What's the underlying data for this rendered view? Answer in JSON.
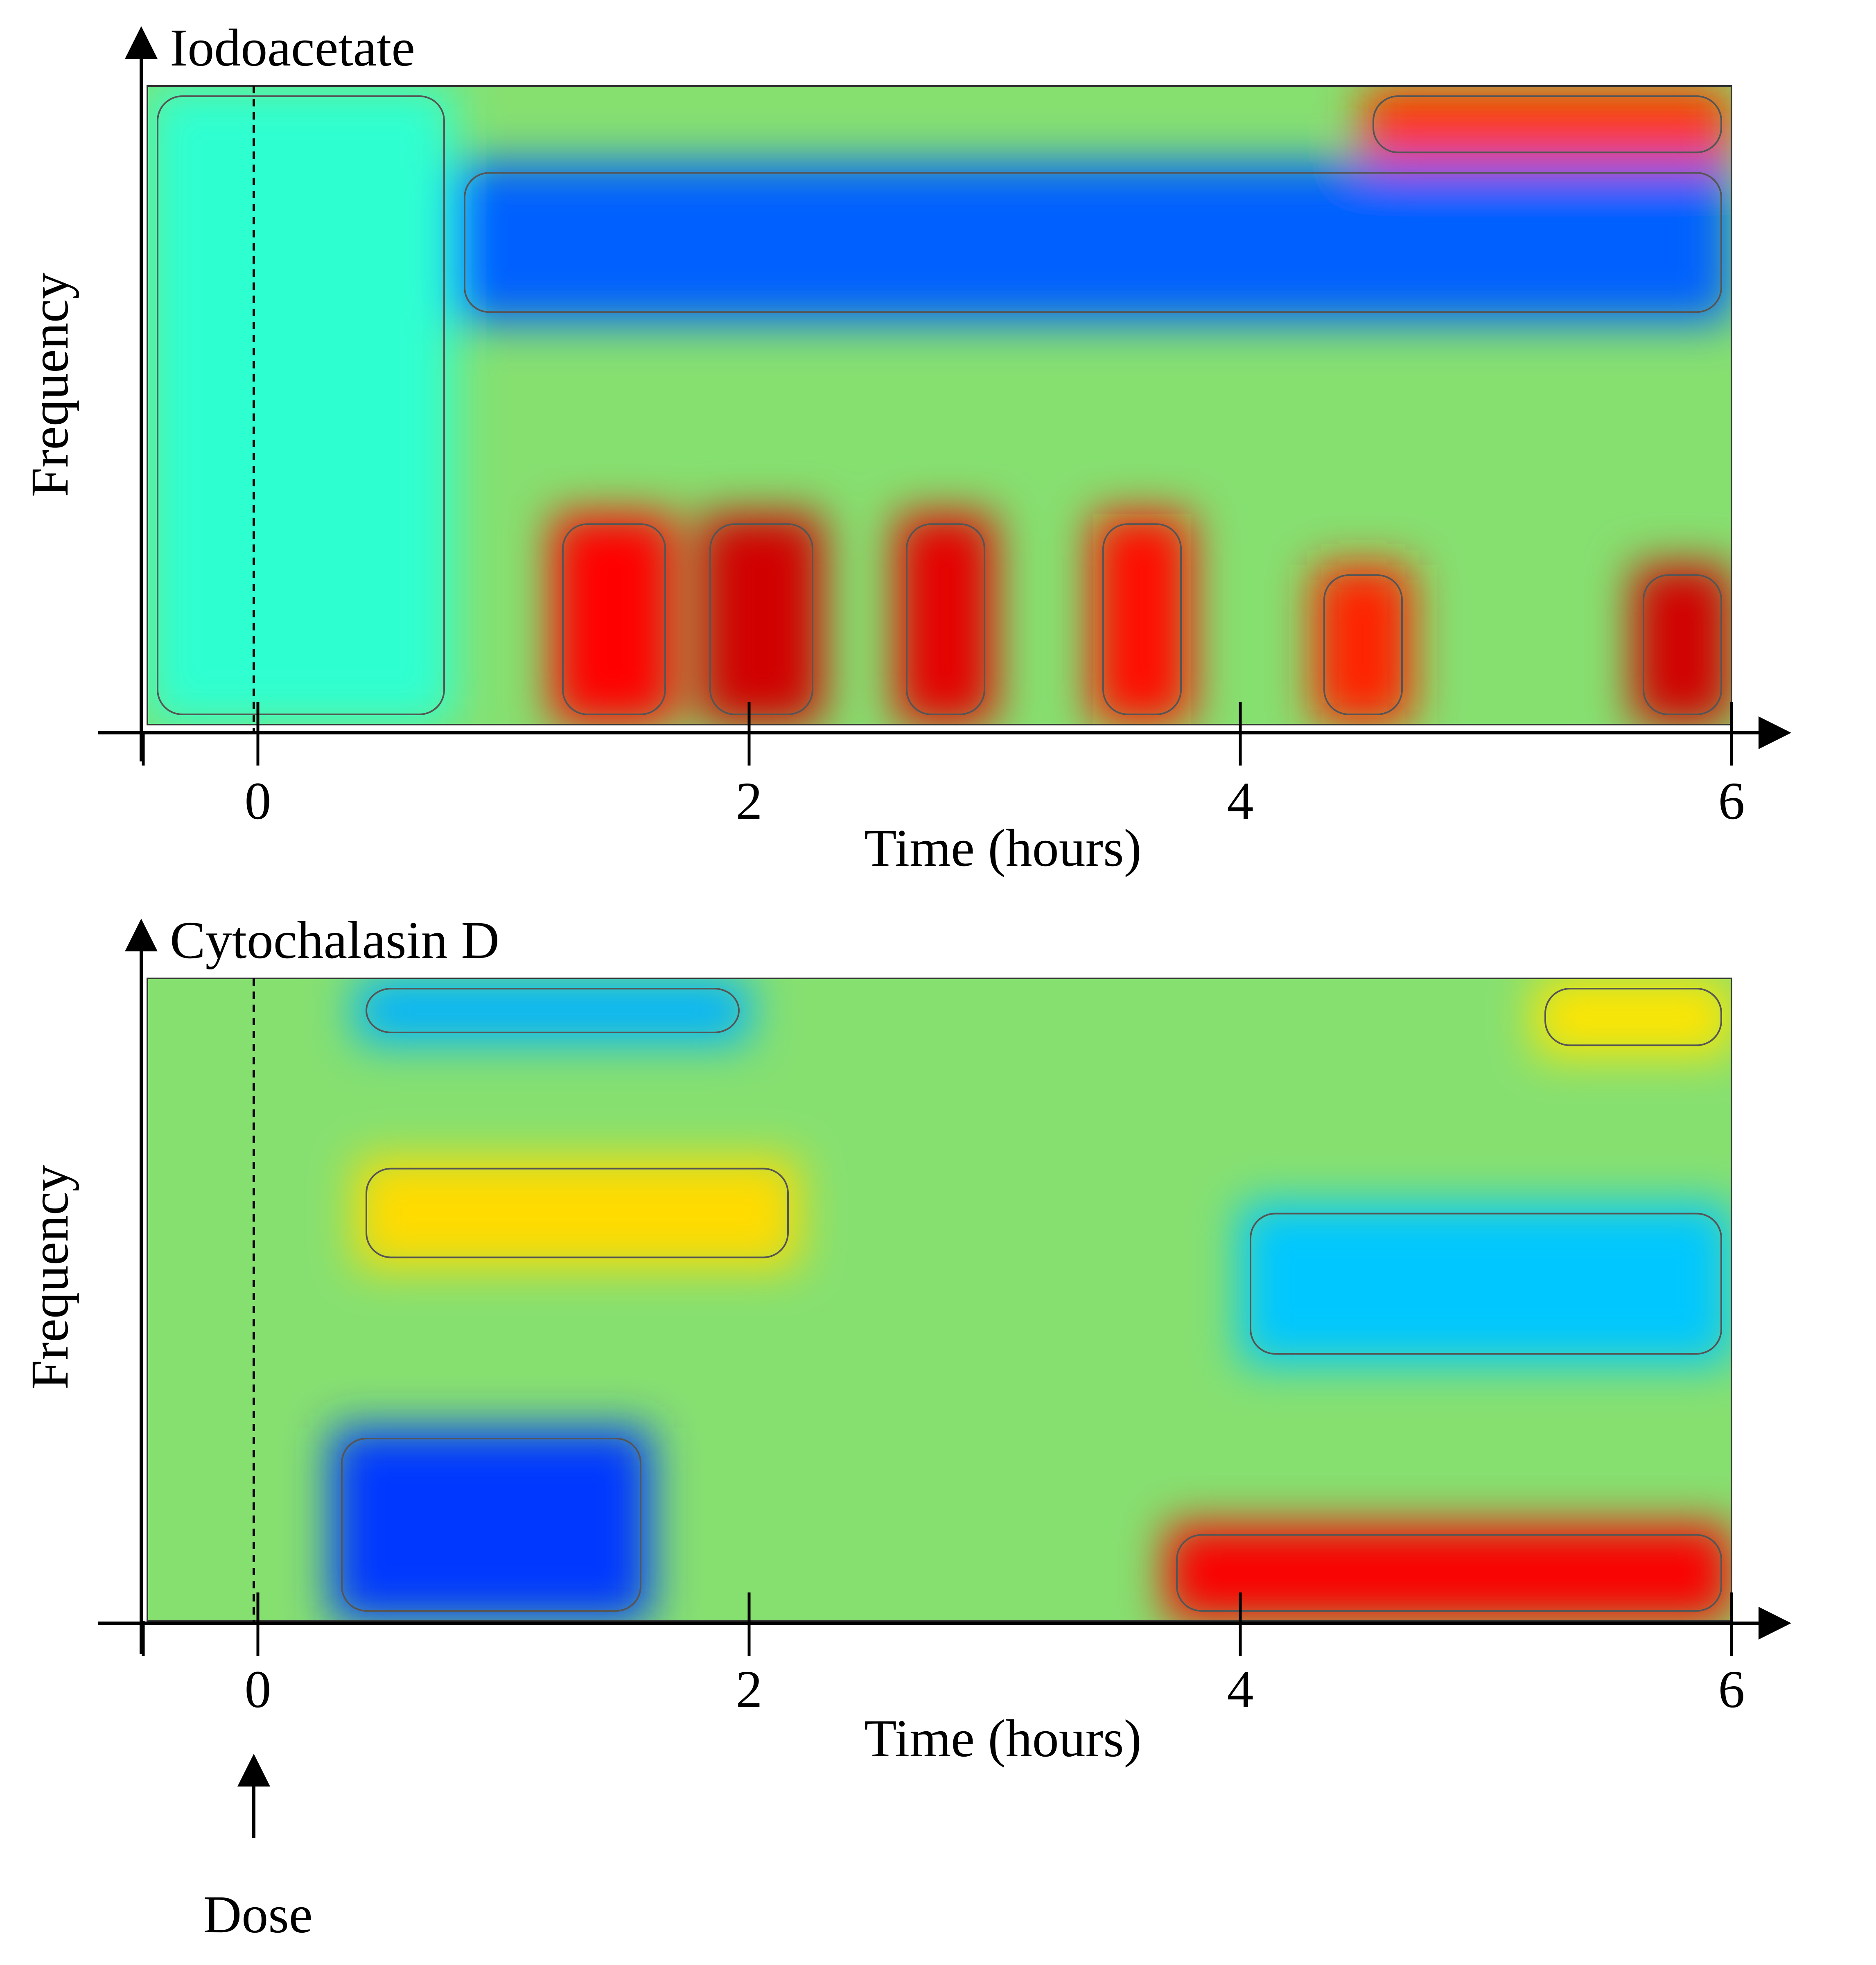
{
  "chart_data": [
    {
      "type": "heatmap",
      "title": "Iodoacetate",
      "xlabel": "Time (hours)",
      "ylabel": "Frequency",
      "xlim": [
        -0.45,
        6.0
      ],
      "xticks": [
        0,
        2,
        4,
        6
      ],
      "xtick_labels": [
        "0",
        "2",
        "4",
        "6"
      ],
      "dose_marker_x": 0,
      "colormap": "jet",
      "contours": true,
      "regions": [
        {
          "t0": -0.45,
          "t1": 0.8,
          "f0": 0.0,
          "f1": 1.0,
          "value": 0.42
        },
        {
          "t0": 0.8,
          "t1": 6.0,
          "f0": 0.63,
          "f1": 0.88,
          "value": 0.22
        },
        {
          "t0": 1.2,
          "t1": 1.7,
          "f0": 0.0,
          "f1": 0.33,
          "value": 0.87
        },
        {
          "t0": 1.8,
          "t1": 2.3,
          "f0": 0.0,
          "f1": 0.33,
          "value": 0.92
        },
        {
          "t0": 2.6,
          "t1": 3.0,
          "f0": 0.0,
          "f1": 0.33,
          "value": 0.9
        },
        {
          "t0": 3.4,
          "t1": 3.8,
          "f0": 0.0,
          "f1": 0.33,
          "value": 0.86
        },
        {
          "t0": 4.3,
          "t1": 4.7,
          "f0": 0.0,
          "f1": 0.25,
          "value": 0.84
        },
        {
          "t0": 5.6,
          "t1": 6.0,
          "f0": 0.0,
          "f1": 0.25,
          "value": 0.92
        },
        {
          "t0": 4.5,
          "t1": 6.0,
          "f0": 0.88,
          "f1": 1.0,
          "value": 0.82
        }
      ]
    },
    {
      "type": "heatmap",
      "title": "Cytochalasin D",
      "xlabel": "Time (hours)",
      "ylabel": "Frequency",
      "xlim": [
        -0.45,
        6.0
      ],
      "xticks": [
        0,
        2,
        4,
        6
      ],
      "xtick_labels": [
        "0",
        "2",
        "4",
        "6"
      ],
      "dose_marker_x": 0,
      "colormap": "jet",
      "contours": true,
      "regions": [
        {
          "t0": 0.3,
          "t1": 1.6,
          "f0": 0.0,
          "f1": 0.3,
          "value": 0.18
        },
        {
          "t0": 0.4,
          "t1": 2.2,
          "f0": 0.55,
          "f1": 0.72,
          "value": 0.66
        },
        {
          "t0": 0.4,
          "t1": 2.0,
          "f0": 0.9,
          "f1": 1.0,
          "value": 0.3
        },
        {
          "t0": 3.7,
          "t1": 6.0,
          "f0": 0.0,
          "f1": 0.15,
          "value": 0.88
        },
        {
          "t0": 4.0,
          "t1": 6.0,
          "f0": 0.4,
          "f1": 0.65,
          "value": 0.32
        },
        {
          "t0": 5.2,
          "t1": 6.0,
          "f0": 0.88,
          "f1": 1.0,
          "value": 0.65
        }
      ]
    }
  ],
  "annotation": {
    "dose_label": "Dose"
  }
}
